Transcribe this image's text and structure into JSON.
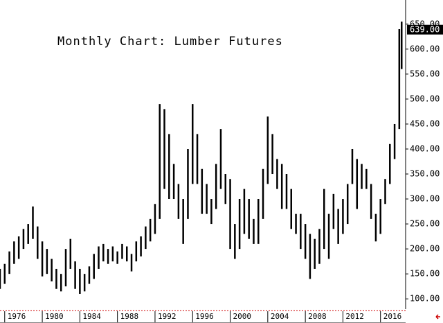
{
  "chart_data": {
    "type": "range_bar",
    "title": "Monthly Chart: Lumber Futures",
    "color": "#000000",
    "x": [
      1975.5,
      1976,
      1976.5,
      1977,
      1977.5,
      1978,
      1978.5,
      1979,
      1979.5,
      1980,
      1980.5,
      1981,
      1981.5,
      1982,
      1982.5,
      1983,
      1983.5,
      1984,
      1984.5,
      1985,
      1985.5,
      1986,
      1986.5,
      1987,
      1987.5,
      1988,
      1988.5,
      1989,
      1989.5,
      1990,
      1990.5,
      1991,
      1991.5,
      1992,
      1992.5,
      1993,
      1993.5,
      1994,
      1994.5,
      1995,
      1995.5,
      1996,
      1996.5,
      1997,
      1997.5,
      1998,
      1998.5,
      1999,
      1999.5,
      2000,
      2000.5,
      2001,
      2001.5,
      2002,
      2002.5,
      2003,
      2003.5,
      2004,
      2004.5,
      2005,
      2005.5,
      2006,
      2006.5,
      2007,
      2007.5,
      2008,
      2008.5,
      2009,
      2009.5,
      2010,
      2010.5,
      2011,
      2011.5,
      2012,
      2012.5,
      2013,
      2013.5,
      2014,
      2014.5,
      2015,
      2015.5,
      2016,
      2016.5,
      2017,
      2017.5,
      2018,
      2018.25
    ],
    "high": [
      160,
      170,
      195,
      215,
      225,
      240,
      250,
      285,
      245,
      215,
      200,
      180,
      160,
      150,
      200,
      220,
      175,
      160,
      150,
      165,
      190,
      205,
      210,
      200,
      205,
      195,
      210,
      205,
      190,
      215,
      225,
      245,
      260,
      290,
      490,
      480,
      430,
      370,
      330,
      300,
      400,
      490,
      430,
      360,
      330,
      300,
      370,
      440,
      350,
      340,
      250,
      300,
      320,
      300,
      260,
      300,
      360,
      465,
      430,
      380,
      370,
      350,
      320,
      270,
      270,
      250,
      230,
      220,
      240,
      320,
      270,
      310,
      280,
      300,
      330,
      400,
      380,
      370,
      360,
      330,
      270,
      300,
      340,
      410,
      450,
      640,
      655
    ],
    "low": [
      120,
      130,
      150,
      170,
      180,
      200,
      210,
      220,
      180,
      145,
      150,
      135,
      120,
      115,
      125,
      160,
      120,
      110,
      115,
      130,
      140,
      160,
      175,
      170,
      175,
      170,
      180,
      175,
      155,
      175,
      185,
      200,
      215,
      230,
      260,
      320,
      300,
      300,
      260,
      210,
      260,
      330,
      330,
      270,
      270,
      250,
      280,
      320,
      290,
      200,
      180,
      200,
      230,
      220,
      210,
      210,
      260,
      330,
      350,
      320,
      280,
      280,
      240,
      230,
      200,
      180,
      140,
      160,
      170,
      200,
      180,
      240,
      210,
      230,
      250,
      330,
      280,
      320,
      320,
      260,
      215,
      230,
      290,
      330,
      380,
      440,
      560
    ],
    "xlim": [
      1975.5,
      2018.6
    ],
    "ylim": [
      60,
      690
    ],
    "xticks": [
      1976,
      1980,
      1984,
      1988,
      1992,
      1996,
      2000,
      2004,
      2008,
      2012,
      2016
    ],
    "yticks": [
      {
        "value": 100,
        "label": "100.00"
      },
      {
        "value": 150,
        "label": "150.00"
      },
      {
        "value": 200,
        "label": "200.00"
      },
      {
        "value": 250,
        "label": "250.00"
      },
      {
        "value": 300,
        "label": "300.00"
      },
      {
        "value": 350,
        "label": "350.00"
      },
      {
        "value": 400,
        "label": "400.00"
      },
      {
        "value": 450,
        "label": "450.00"
      },
      {
        "value": 500,
        "label": "500.00"
      },
      {
        "value": 550,
        "label": "550.00"
      },
      {
        "value": 600,
        "label": "600.00"
      },
      {
        "value": 650,
        "label": "650.00"
      }
    ],
    "last_price": {
      "value": 639,
      "label": "639.00"
    }
  }
}
